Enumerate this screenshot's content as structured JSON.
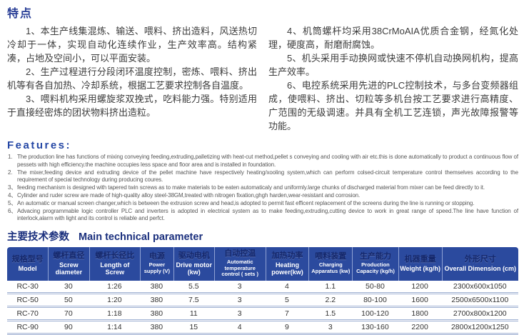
{
  "features_cn": {
    "heading": "特点",
    "columns": [
      {
        "items": [
          {
            "marker": "1、",
            "text": "本生产线集混炼、输送、喂料、挤出造料，风送热切冷却于一体，实现自动化连续作业，生产效率高。结构紧凑，占地及空间小，可以平面安装。"
          },
          {
            "marker": "2、",
            "text": "生产过程进行分段闭环温度控制，密炼、喂料、挤出机等有各自加热、冷却系统，根据工艺要求控制各自温度。"
          },
          {
            "marker": "3、",
            "text": "喂料机构采用螺旋浆双挽式，吃料能力强。特别适用于直接经密炼的团状物料挤出造粒。"
          }
        ]
      },
      {
        "items": [
          {
            "marker": "4、",
            "text": "机筒螺杆均采用38CrMoAIA优质合金钢，经氮化处理，硬度高，耐磨耐腐蚀。"
          },
          {
            "marker": "5、",
            "text": "机头采用手动换网或快速不停机自动换网机构，提高生产效率。"
          },
          {
            "marker": "6、",
            "text": "电控系统采用先进的PLC控制技术，与多台变频器组成，使喂料、挤出、切粒等多机台按工艺要求进行高精度、广范围的无级调速。并具有全机工艺连锁，声光故障报警等功能。"
          }
        ]
      }
    ]
  },
  "features_en": {
    "heading": "Features:",
    "items": [
      {
        "marker": "1.",
        "text": "The production line has functions of mixing conveying feeding,extruding,palletizing with heat-cut method,pellet s conveying and cooling with air etc.this is done automatically to product a continuous flow of pessets with high efficiency.the machine occupies less space and floor area and is installed in foundation."
      },
      {
        "marker": "2.",
        "text": "The mixer,feeding device and extruding device of the pellet machine have respectively heating/xooling system,which can perform colsed-circuit temperature control themselves according to the requirement of special technology during producing coures."
      },
      {
        "marker": "3、",
        "text": "feeding mechanism is designed with tapered twin screws as to make materials to be eaten automaticaly and uniformly.large chunks of discharged material from mixer can be feed directly to it."
      },
      {
        "marker": "4、",
        "text": "Cylinder and ruder screw are made of  high-quality alloy steel-38GM,treated with nitrogen fixation,ghgh harden,wear-resistant and corrosion."
      },
      {
        "marker": "5、",
        "text": "An automatic or manual screen changer,which is between the extrusion screw and head,is adopted to permit fast efficent replacement of the screens during the line is running or stopping."
      },
      {
        "marker": "6、",
        "text": "Advacing programmable logic controller PLC and inverters is adopted in electrical system as to make feeding,extruding,cutting device to work in great range of speed.The line have function of interlock,alarm with light and its control is reliable and perfct."
      }
    ]
  },
  "tech_params": {
    "heading_cn": "主要技术参数",
    "heading_en": "Main technical parameter",
    "columns": [
      {
        "cn": "规格型号",
        "en": "Model"
      },
      {
        "cn": "螺杆直径",
        "en": "Screw diameter"
      },
      {
        "cn": "螺杆长径比",
        "en": "Length of Screw"
      },
      {
        "cn": "电源",
        "en": "Power supply (V)"
      },
      {
        "cn": "驱动电机",
        "en": "Drive motor (kw)"
      },
      {
        "cn": "自动控温",
        "en": "Automatic temperature control ( sets )"
      },
      {
        "cn": "加热功率",
        "en": "Heating power(kw)"
      },
      {
        "cn": "喂料装置",
        "en": "Charging Apparatus (kw)"
      },
      {
        "cn": "生产能力",
        "en": "Production Capacity (kg/h)"
      },
      {
        "cn": "机器重量",
        "en": "Weight (kg/h)"
      },
      {
        "cn": "外形尺寸",
        "en": "Overall Dimension (cm)"
      }
    ],
    "rows": [
      [
        "RC-30",
        "30",
        "1:26",
        "380",
        "5.5",
        "3",
        "4",
        "1.1",
        "50-80",
        "1200",
        "2300x600x1050"
      ],
      [
        "RC-50",
        "50",
        "1:20",
        "380",
        "7.5",
        "3",
        "5",
        "2.2",
        "80-100",
        "1600",
        "2500x6500x1100"
      ],
      [
        "RC-70",
        "70",
        "1:18",
        "380",
        "11",
        "3",
        "7",
        "1.5",
        "100-120",
        "1800",
        "2700x800x1200"
      ],
      [
        "RC-90",
        "90",
        "1:14",
        "380",
        "15",
        "4",
        "9",
        "3",
        "130-160",
        "2200",
        "2800x1200x1250"
      ]
    ]
  },
  "colors": {
    "heading_blue": "#2a3f97",
    "features_blue": "#2547a5",
    "table_header_bg": "#2b4a9e",
    "table_header_cn_text": "#14276b",
    "table_header_en_text": "#ffffff",
    "row_divider": "#9fb0d2"
  }
}
